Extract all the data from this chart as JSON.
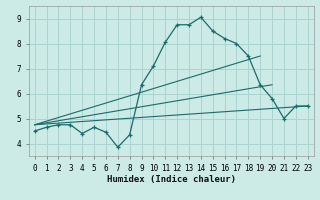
{
  "xlabel": "Humidex (Indice chaleur)",
  "bg_color": "#cceae6",
  "grid_color": "#aad4d0",
  "line_color": "#1a6b6b",
  "xlim": [
    -0.5,
    23.5
  ],
  "ylim": [
    3.5,
    9.5
  ],
  "xticks": [
    0,
    1,
    2,
    3,
    4,
    5,
    6,
    7,
    8,
    9,
    10,
    11,
    12,
    13,
    14,
    15,
    16,
    17,
    18,
    19,
    20,
    21,
    22,
    23
  ],
  "yticks": [
    4,
    5,
    6,
    7,
    8,
    9
  ],
  "main_line": {
    "x": [
      0,
      1,
      2,
      3,
      4,
      5,
      6,
      7,
      8,
      9,
      10,
      11,
      12,
      13,
      14,
      15,
      16,
      17,
      18,
      19,
      20,
      21,
      22,
      23
    ],
    "y": [
      4.5,
      4.65,
      4.75,
      4.75,
      4.4,
      4.65,
      4.45,
      3.85,
      4.35,
      6.35,
      7.1,
      8.05,
      8.75,
      8.75,
      9.05,
      8.5,
      8.2,
      8.0,
      7.5,
      6.35,
      5.8,
      5.0,
      5.5,
      5.5
    ]
  },
  "trend_lines": [
    {
      "x": [
        0,
        19
      ],
      "y": [
        4.75,
        7.5
      ]
    },
    {
      "x": [
        0,
        20
      ],
      "y": [
        4.75,
        6.35
      ]
    },
    {
      "x": [
        0,
        23
      ],
      "y": [
        4.75,
        5.5
      ]
    }
  ]
}
